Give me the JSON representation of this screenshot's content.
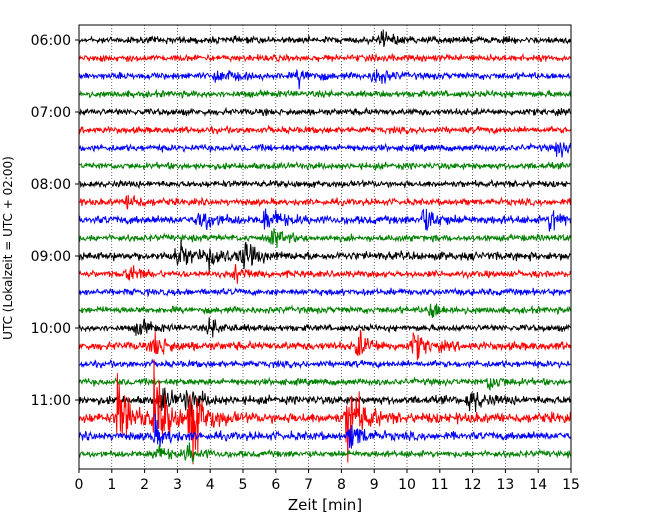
{
  "chart_data": {
    "type": "line",
    "title": "",
    "xlabel": "Zeit  [min]",
    "ylabel": "UTC (Lokalzeit = UTC + 02:00)",
    "xlim": [
      0,
      15
    ],
    "x_ticks": [
      0,
      1,
      2,
      3,
      4,
      5,
      6,
      7,
      8,
      9,
      10,
      11,
      12,
      13,
      14,
      15
    ],
    "y_start_time": "06:00",
    "trace_interval_min": 15,
    "y_ticks": [
      "06:00",
      "07:00",
      "08:00",
      "09:00",
      "10:00",
      "11:00"
    ],
    "grid_x": true,
    "line_colors": [
      "#000000",
      "#ff0000",
      "#0000ff",
      "#008000"
    ],
    "traces": [
      {
        "start": "06:00",
        "amplitude": "low",
        "events_min": [
          9.2
        ]
      },
      {
        "start": "06:15",
        "amplitude": "low",
        "events_min": []
      },
      {
        "start": "06:30",
        "amplitude": "low",
        "events_min": [
          4.2,
          6.7,
          9.0
        ]
      },
      {
        "start": "06:45",
        "amplitude": "low",
        "events_min": []
      },
      {
        "start": "07:00",
        "amplitude": "low",
        "events_min": []
      },
      {
        "start": "07:15",
        "amplitude": "low",
        "events_min": []
      },
      {
        "start": "07:30",
        "amplitude": "low",
        "events_min": [
          14.6
        ]
      },
      {
        "start": "07:45",
        "amplitude": "low",
        "events_min": []
      },
      {
        "start": "08:00",
        "amplitude": "low",
        "events_min": []
      },
      {
        "start": "08:15",
        "amplitude": "low",
        "events_min": [
          1.5
        ]
      },
      {
        "start": "08:30",
        "amplitude": "medium",
        "events_min": [
          3.7,
          5.7,
          10.5,
          14.4
        ]
      },
      {
        "start": "08:45",
        "amplitude": "low",
        "events_min": [
          5.9
        ]
      },
      {
        "start": "09:00",
        "amplitude": "medium",
        "events_min": [
          3.0,
          4.0,
          5.0
        ]
      },
      {
        "start": "09:15",
        "amplitude": "low",
        "events_min": [
          1.5,
          4.8
        ]
      },
      {
        "start": "09:30",
        "amplitude": "low",
        "events_min": []
      },
      {
        "start": "09:45",
        "amplitude": "low",
        "events_min": [
          10.7
        ]
      },
      {
        "start": "10:00",
        "amplitude": "low",
        "events_min": [
          1.8,
          4.0
        ]
      },
      {
        "start": "10:15",
        "amplitude": "medium",
        "events_min": [
          2.3,
          8.5,
          10.2
        ]
      },
      {
        "start": "10:30",
        "amplitude": "low",
        "events_min": []
      },
      {
        "start": "10:45",
        "amplitude": "low",
        "events_min": [
          12.5
        ]
      },
      {
        "start": "11:00",
        "amplitude": "medium",
        "events_min": [
          2.5,
          3.3,
          11.9
        ]
      },
      {
        "start": "11:15",
        "amplitude": "high",
        "events_min": [
          1.2,
          2.3,
          3.4,
          8.2
        ]
      },
      {
        "start": "11:30",
        "amplitude": "medium",
        "events_min": [
          2.3,
          8.3
        ]
      },
      {
        "start": "11:45",
        "amplitude": "low",
        "events_min": [
          2.3,
          3.3
        ]
      }
    ]
  }
}
